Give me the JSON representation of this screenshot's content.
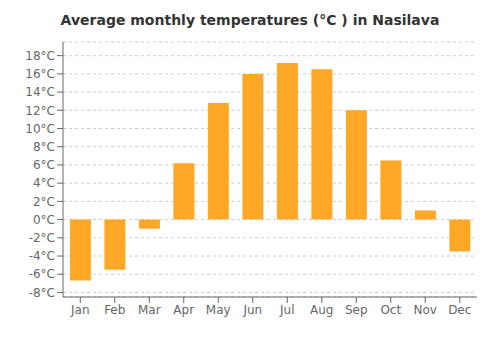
{
  "chart_data": {
    "type": "bar",
    "title": "Average monthly temperatures (°C ) in Nasilava",
    "categories": [
      "Jan",
      "Feb",
      "Mar",
      "Apr",
      "May",
      "Jun",
      "Jul",
      "Aug",
      "Sep",
      "Oct",
      "Nov",
      "Dec"
    ],
    "values": [
      -6.7,
      -5.5,
      -1.0,
      6.2,
      12.8,
      16.0,
      17.2,
      16.5,
      12.0,
      6.5,
      1.0,
      -3.5
    ],
    "color": "#FFA726",
    "ylim": [
      -8.5,
      19.5
    ],
    "yticks": [
      {
        "value": -8,
        "label": "-8°C"
      },
      {
        "value": -6,
        "label": "-6°C"
      },
      {
        "value": -4,
        "label": "-4°C"
      },
      {
        "value": -2,
        "label": "-2°C"
      },
      {
        "value": 0,
        "label": "0°C"
      },
      {
        "value": 2,
        "label": "2°C"
      },
      {
        "value": 4,
        "label": "4°C"
      },
      {
        "value": 6,
        "label": "6°C"
      },
      {
        "value": 8,
        "label": "8°C"
      },
      {
        "value": 10,
        "label": "10°C"
      },
      {
        "value": 12,
        "label": "12°C"
      },
      {
        "value": 14,
        "label": "14°C"
      },
      {
        "value": 16,
        "label": "16°C"
      },
      {
        "value": 18,
        "label": "18°C"
      }
    ],
    "grid": true
  }
}
